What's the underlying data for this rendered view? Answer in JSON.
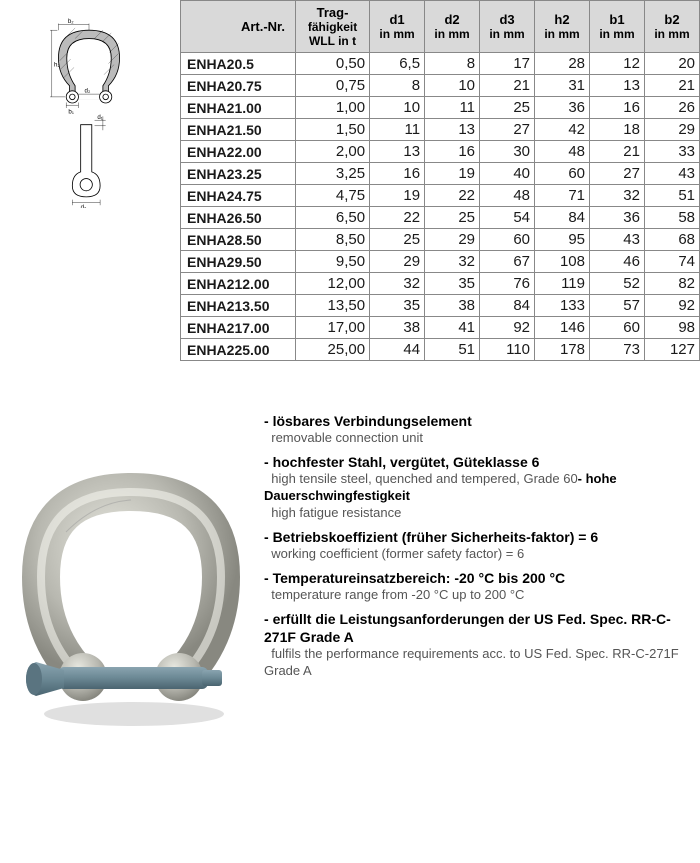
{
  "table": {
    "headers": [
      {
        "line1": "Art.-Nr.",
        "line2": ""
      },
      {
        "line1": "Trag-",
        "line2": "fähigkeit",
        "line3": "WLL in t"
      },
      {
        "line1": "d1",
        "line2": "in mm"
      },
      {
        "line1": "d2",
        "line2": "in mm"
      },
      {
        "line1": "d3",
        "line2": "in mm"
      },
      {
        "line1": "h2",
        "line2": "in mm"
      },
      {
        "line1": "b1",
        "line2": "in mm"
      },
      {
        "line1": "b2",
        "line2": "in mm"
      }
    ],
    "rows": [
      {
        "art": "ENHA20.5",
        "wll": "0,50",
        "d1": "6,5",
        "d2": "8",
        "d3": "17",
        "h2": "28",
        "b1": "12",
        "b2": "20"
      },
      {
        "art": "ENHA20.75",
        "wll": "0,75",
        "d1": "8",
        "d2": "10",
        "d3": "21",
        "h2": "31",
        "b1": "13",
        "b2": "21"
      },
      {
        "art": "ENHA21.00",
        "wll": "1,00",
        "d1": "10",
        "d2": "11",
        "d3": "25",
        "h2": "36",
        "b1": "16",
        "b2": "26"
      },
      {
        "art": "ENHA21.50",
        "wll": "1,50",
        "d1": "11",
        "d2": "13",
        "d3": "27",
        "h2": "42",
        "b1": "18",
        "b2": "29"
      },
      {
        "art": "ENHA22.00",
        "wll": "2,00",
        "d1": "13",
        "d2": "16",
        "d3": "30",
        "h2": "48",
        "b1": "21",
        "b2": "33"
      },
      {
        "art": "ENHA23.25",
        "wll": "3,25",
        "d1": "16",
        "d2": "19",
        "d3": "40",
        "h2": "60",
        "b1": "27",
        "b2": "43"
      },
      {
        "art": "ENHA24.75",
        "wll": "4,75",
        "d1": "19",
        "d2": "22",
        "d3": "48",
        "h2": "71",
        "b1": "32",
        "b2": "51"
      },
      {
        "art": "ENHA26.50",
        "wll": "6,50",
        "d1": "22",
        "d2": "25",
        "d3": "54",
        "h2": "84",
        "b1": "36",
        "b2": "58"
      },
      {
        "art": "ENHA28.50",
        "wll": "8,50",
        "d1": "25",
        "d2": "29",
        "d3": "60",
        "h2": "95",
        "b1": "43",
        "b2": "68"
      },
      {
        "art": "ENHA29.50",
        "wll": "9,50",
        "d1": "29",
        "d2": "32",
        "d3": "67",
        "h2": "108",
        "b1": "46",
        "b2": "74"
      },
      {
        "art": "ENHA212.00",
        "wll": "12,00",
        "d1": "32",
        "d2": "35",
        "d3": "76",
        "h2": "119",
        "b1": "52",
        "b2": "82"
      },
      {
        "art": "ENHA213.50",
        "wll": "13,50",
        "d1": "35",
        "d2": "38",
        "d3": "84",
        "h2": "133",
        "b1": "57",
        "b2": "92"
      },
      {
        "art": "ENHA217.00",
        "wll": "17,00",
        "d1": "38",
        "d2": "41",
        "d3": "92",
        "h2": "146",
        "b1": "60",
        "b2": "98"
      },
      {
        "art": "ENHA225.00",
        "wll": "25,00",
        "d1": "44",
        "d2": "51",
        "d3": "110",
        "h2": "178",
        "b1": "73",
        "b2": "127"
      }
    ],
    "colWidths": [
      "115px",
      "60px",
      "46px",
      "46px",
      "46px",
      "46px",
      "46px",
      "46px"
    ],
    "header_bg": "#d9d9d9",
    "border_color": "#888888"
  },
  "diagram": {
    "labels": {
      "b2": "b₂",
      "h2": "h₂",
      "d2": "d₂",
      "b1": "b₁",
      "d1": "d₁",
      "d3": "d₃"
    }
  },
  "photo": {
    "body_color": "#b8b8b0",
    "pin_color": "#6b8894",
    "highlight": "#e8e8e0"
  },
  "specs": [
    {
      "de": "lösbares Verbindungselement",
      "en": "removable connection unit"
    },
    {
      "de": "hochfester Stahl, vergütet, Güteklasse 6",
      "en": "high tensile steel, quenched and tempered, Grade 60",
      "de2": "- hohe Dauerschwingfestigkeit",
      "en2": "high fatigue resistance"
    },
    {
      "de": "Betriebskoeffizient (früher Sicherheits-faktor) = 6",
      "en": "working coefficient (former safety factor) = 6"
    },
    {
      "de": "Temperatureinsatzbereich: -20 °C bis 200 °C",
      "en": "temperature range from -20 °C up to 200 °C"
    },
    {
      "de": "erfüllt die Leistungsanforderungen der US Fed. Spec. RR-C-271F Grade A",
      "en": "fulfils the performance requirements acc. to US Fed. Spec. RR-C-271F Grade A"
    }
  ]
}
